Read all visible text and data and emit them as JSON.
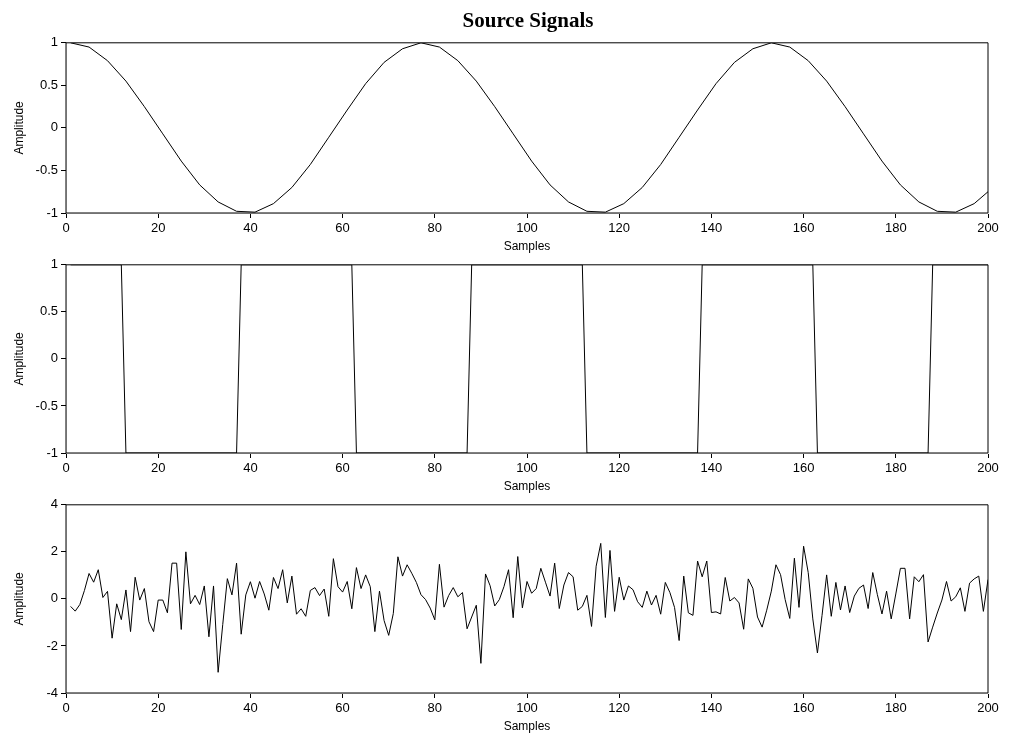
{
  "chart_data": [
    {
      "type": "line",
      "title": "Source Signals",
      "xlabel": "Samples",
      "ylabel": "Amplitude",
      "color": "#000000",
      "xlim": [
        0,
        200
      ],
      "xticks": [
        0,
        20,
        40,
        60,
        80,
        100,
        120,
        140,
        160,
        180,
        200
      ],
      "ylim": [
        -1,
        1
      ],
      "yticks": [
        -1,
        -0.5,
        0,
        0.5,
        1
      ],
      "x": [
        1,
        5,
        9,
        13,
        17,
        21,
        25,
        29,
        33,
        37,
        41,
        45,
        49,
        53,
        57,
        61,
        65,
        69,
        73,
        77,
        81,
        85,
        89,
        93,
        97,
        101,
        105,
        109,
        113,
        117,
        121,
        125,
        129,
        133,
        137,
        141,
        145,
        149,
        153,
        157,
        161,
        165,
        169,
        173,
        177,
        181,
        185,
        189,
        193,
        197,
        200
      ],
      "values": [
        1,
        0.95,
        0.79,
        0.55,
        0.25,
        -0.07,
        -0.39,
        -0.67,
        -0.87,
        -0.98,
        -0.99,
        -0.89,
        -0.7,
        -0.43,
        -0.11,
        0.21,
        0.52,
        0.77,
        0.93,
        1,
        0.95,
        0.79,
        0.55,
        0.25,
        -0.07,
        -0.39,
        -0.67,
        -0.87,
        -0.98,
        -0.99,
        -0.89,
        -0.7,
        -0.43,
        -0.11,
        0.21,
        0.52,
        0.77,
        0.93,
        1,
        0.95,
        0.79,
        0.55,
        0.25,
        -0.07,
        -0.39,
        -0.67,
        -0.87,
        -0.98,
        -0.99,
        -0.89,
        -0.75
      ]
    },
    {
      "type": "line",
      "xlabel": "Samples",
      "ylabel": "Amplitude",
      "color": "#000000",
      "xlim": [
        0,
        200
      ],
      "xticks": [
        0,
        20,
        40,
        60,
        80,
        100,
        120,
        140,
        160,
        180,
        200
      ],
      "ylim": [
        -1,
        1
      ],
      "yticks": [
        -1,
        -0.5,
        0,
        0.5,
        1
      ],
      "x": [
        1,
        12,
        13,
        37,
        38,
        62,
        63,
        87,
        88,
        112,
        113,
        137,
        138,
        162,
        163,
        187,
        188,
        200
      ],
      "values": [
        1,
        1,
        -1,
        -1,
        1,
        1,
        -1,
        -1,
        1,
        1,
        -1,
        -1,
        1,
        1,
        -1,
        -1,
        1,
        1
      ]
    },
    {
      "type": "line",
      "xlabel": "Samples",
      "ylabel": "Amplitude",
      "color": "#000000",
      "xlim": [
        0,
        200
      ],
      "xticks": [
        0,
        20,
        40,
        60,
        80,
        100,
        120,
        140,
        160,
        180,
        200
      ],
      "ylim": [
        -4,
        4
      ],
      "yticks": [
        -4,
        -2,
        0,
        2,
        4
      ],
      "x": [
        1,
        2,
        3,
        4,
        5,
        6,
        7,
        8,
        9,
        10,
        11,
        12,
        13,
        14,
        15,
        16,
        17,
        18,
        19,
        20,
        21,
        22,
        23,
        24,
        25,
        26,
        27,
        28,
        29,
        30,
        31,
        32,
        33,
        34,
        35,
        36,
        37,
        38,
        39,
        40,
        41,
        42,
        43,
        44,
        45,
        46,
        47,
        48,
        49,
        50,
        51,
        52,
        53,
        54,
        55,
        56,
        57,
        58,
        59,
        60,
        61,
        62,
        63,
        64,
        65,
        66,
        67,
        68,
        69,
        70,
        71,
        72,
        73,
        74,
        75,
        76,
        77,
        78,
        79,
        80,
        81,
        82,
        83,
        84,
        85,
        86,
        87,
        88,
        89,
        90,
        91,
        92,
        93,
        94,
        95,
        96,
        97,
        98,
        99,
        100,
        101,
        102,
        103,
        104,
        105,
        106,
        107,
        108,
        109,
        110,
        111,
        112,
        113,
        114,
        115,
        116,
        117,
        118,
        119,
        120,
        121,
        122,
        123,
        124,
        125,
        126,
        127,
        128,
        129,
        130,
        131,
        132,
        133,
        134,
        135,
        136,
        137,
        138,
        139,
        140,
        141,
        142,
        143,
        144,
        145,
        146,
        147,
        148,
        149,
        150,
        151,
        152,
        153,
        154,
        155,
        156,
        157,
        158,
        159,
        160,
        161,
        162,
        163,
        164,
        165,
        166,
        167,
        168,
        169,
        170,
        171,
        172,
        173,
        174,
        175,
        176,
        177,
        178,
        179,
        180,
        181,
        182,
        183,
        184,
        185,
        186,
        187,
        188,
        189,
        190,
        191,
        192,
        193,
        194,
        195,
        196,
        197,
        198,
        199,
        200
      ],
      "values": [
        -0.32,
        -0.52,
        -0.24,
        0.36,
        1.08,
        0.71,
        1.24,
        0.06,
        0.32,
        -1.67,
        -0.21,
        -0.88,
        0.38,
        -1.39,
        0.92,
        -0.05,
        0.44,
        -0.97,
        -1.39,
        -0.05,
        -0.05,
        -0.59,
        1.52,
        1.52,
        -1.3,
        2,
        -0.21,
        0.15,
        -0.24,
        0.55,
        -1.61,
        0.55,
        -3.12,
        -1.09,
        0.86,
        0.17,
        1.52,
        -1.5,
        0.17,
        0.73,
        0.03,
        0.74,
        0.21,
        -0.48,
        0.91,
        0.44,
        1.24,
        -0.17,
        0.97,
        -0.65,
        -0.42,
        -0.74,
        0.36,
        0.48,
        0.14,
        0.42,
        -0.74,
        1.71,
        0.52,
        0.29,
        0.74,
        -0.42,
        1.33,
        0.44,
        1.02,
        0.52,
        -1.39,
        0.33,
        -0.92,
        -1.55,
        -0.62,
        1.79,
        0.97,
        1.45,
        1.09,
        0.7,
        0.18,
        -0.03,
        -0.39,
        -0.89,
        1.47,
        -0.35,
        0.14,
        0.48,
        0.09,
        0.27,
        -1.27,
        -0.77,
        -0.27,
        -2.74,
        1.06,
        0.56,
        -0.3,
        -0.03,
        0.52,
        1.24,
        -0.8,
        1.8,
        -0.38,
        0.74,
        0.24,
        0.44,
        1.3,
        0.71,
        0.12,
        1.52,
        -0.41,
        0.59,
        1.12,
        0.94,
        -0.48,
        -0.32,
        0.15,
        -1.17,
        1.39,
        2.36,
        -0.79,
        2.06,
        -0.53,
        0.92,
        -0.05,
        0.55,
        0.39,
        -0.12,
        -0.36,
        0.33,
        -0.26,
        0.15,
        -0.65,
        0.7,
        0.27,
        -0.36,
        -1.77,
        0.97,
        -0.59,
        -0.7,
        1.61,
        0.94,
        1.61,
        -0.58,
        -0.55,
        -0.64,
        0.91,
        -0.09,
        0.06,
        -0.17,
        -1.29,
        0.85,
        0.45,
        -0.77,
        -1.2,
        -0.48,
        0.33,
        1.45,
        1.03,
        -0.03,
        -0.83,
        1.73,
        -0.36,
        2.24,
        1.12,
        -0.85,
        -2.3,
        -0.7,
        1.02,
        -0.74,
        0.7,
        -0.47,
        0.55,
        -0.58,
        0.12,
        0.45,
        0.59,
        -0.41,
        1.12,
        0.18,
        -0.64,
        0.33,
        -0.85,
        0.21,
        1.3,
        1.3,
        -0.85,
        0.94,
        0.73,
        1.03,
        -1.83,
        -1.2,
        -0.6,
        -0.05,
        0.74,
        -0.09,
        0.09,
        0.47,
        -0.53,
        0.67,
        0.85,
        0.97,
        -0.53,
        0.82
      ]
    }
  ]
}
